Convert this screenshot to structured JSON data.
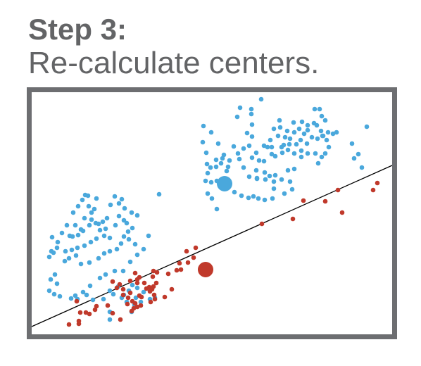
{
  "header": {
    "step": "Step 3:",
    "subtitle": "Re-calculate centers."
  },
  "colors": {
    "text": "#636466",
    "frame": "#6d6e71",
    "blue": "#4aa8dc",
    "red": "#c0392b",
    "line": "#000000"
  },
  "chart_data": {
    "type": "scatter",
    "title": "",
    "xlim": [
      0,
      512
    ],
    "ylim": [
      0,
      344
    ],
    "separator": {
      "x1": 0,
      "y1": 11,
      "x2": 512,
      "y2": 240
    },
    "series": [
      {
        "cluster": "blue",
        "points": [
          [
            326,
            334
          ],
          [
            312,
            320
          ],
          [
            296,
            322
          ],
          [
            312,
            313
          ],
          [
            292,
            309
          ],
          [
            313,
            298
          ],
          [
            306,
            286
          ],
          [
            313,
            281
          ],
          [
            402,
            320
          ],
          [
            409,
            320
          ],
          [
            412,
            310
          ],
          [
            417,
            304
          ],
          [
            476,
            295
          ],
          [
            384,
            302
          ],
          [
            401,
            300
          ],
          [
            405,
            297
          ],
          [
            392,
            297
          ],
          [
            372,
            301
          ],
          [
            380,
            292
          ],
          [
            363,
            289
          ],
          [
            373,
            287
          ],
          [
            387,
            285
          ],
          [
            344,
            292
          ],
          [
            350,
            282
          ],
          [
            339,
            276
          ],
          [
            330,
            268
          ],
          [
            355,
            266
          ],
          [
            366,
            270
          ],
          [
            341,
            256
          ],
          [
            346,
            253
          ],
          [
            356,
            258
          ],
          [
            364,
            262
          ],
          [
            373,
            257
          ],
          [
            383,
            252
          ],
          [
            392,
            257
          ],
          [
            403,
            257
          ],
          [
            412,
            252
          ],
          [
            417,
            257
          ],
          [
            407,
            243
          ],
          [
            422,
            266
          ],
          [
            419,
            276
          ],
          [
            413,
            282
          ],
          [
            406,
            278
          ],
          [
            398,
            280
          ],
          [
            391,
            271
          ],
          [
            382,
            276
          ],
          [
            376,
            270
          ],
          [
            367,
            278
          ],
          [
            358,
            269
          ],
          [
            360,
            280
          ],
          [
            353,
            294
          ],
          [
            352,
            304
          ],
          [
            428,
            285
          ],
          [
            421,
            287
          ],
          [
            433,
            287
          ],
          [
            411,
            289
          ],
          [
            414,
            282
          ],
          [
            392,
            290
          ],
          [
            383,
            261
          ],
          [
            341,
            266
          ],
          [
            335,
            266
          ],
          [
            455,
            271
          ],
          [
            458,
            250
          ],
          [
            464,
            256
          ],
          [
            469,
            237
          ],
          [
            287,
            267
          ],
          [
            293,
            257
          ],
          [
            301,
            264
          ],
          [
            309,
            268
          ],
          [
            255,
            287
          ],
          [
            244,
            296
          ],
          [
            243,
            273
          ],
          [
            265,
            271
          ],
          [
            273,
            255
          ],
          [
            262,
            248
          ],
          [
            248,
            258
          ],
          [
            249,
            242
          ],
          [
            247,
            218
          ],
          [
            250,
            229
          ],
          [
            254,
            237
          ],
          [
            262,
            238
          ],
          [
            277,
            232
          ],
          [
            319,
            233
          ],
          [
            313,
            251
          ],
          [
            319,
            258
          ],
          [
            323,
            247
          ],
          [
            330,
            246
          ],
          [
            331,
            230
          ],
          [
            332,
            220
          ],
          [
            320,
            221
          ],
          [
            309,
            224
          ],
          [
            301,
            237
          ],
          [
            295,
            249
          ],
          [
            281,
            247
          ],
          [
            271,
            250
          ],
          [
            279,
            238
          ],
          [
            269,
            243
          ],
          [
            263,
            218
          ],
          [
            255,
            216
          ],
          [
            250,
            200
          ],
          [
            256,
            193
          ],
          [
            263,
            178
          ],
          [
            320,
            222
          ],
          [
            338,
            225
          ],
          [
            346,
            226
          ],
          [
            355,
            220
          ],
          [
            344,
            207
          ],
          [
            344,
            217
          ],
          [
            373,
            235
          ],
          [
            364,
            233
          ],
          [
            367,
            217
          ],
          [
            370,
            206
          ],
          [
            359,
            200
          ],
          [
            342,
            193
          ],
          [
            331,
            191
          ],
          [
            322,
            193
          ],
          [
            315,
            196
          ],
          [
            308,
            194
          ],
          [
            298,
            197
          ],
          [
            288,
            202
          ],
          [
            72,
            191
          ],
          [
            76,
            198
          ],
          [
            80,
            197
          ],
          [
            92,
            193
          ],
          [
            118,
            196
          ],
          [
            128,
            192
          ],
          [
            181,
            199
          ],
          [
            112,
            184
          ],
          [
            124,
            186
          ],
          [
            132,
            179
          ],
          [
            142,
            173
          ],
          [
            150,
            169
          ],
          [
            124,
            168
          ],
          [
            107,
            165
          ],
          [
            95,
            157
          ],
          [
            101,
            160
          ],
          [
            85,
            173
          ],
          [
            89,
            178
          ],
          [
            81,
            182
          ],
          [
            66,
            182
          ],
          [
            59,
            173
          ],
          [
            75,
            165
          ],
          [
            82,
            155
          ],
          [
            73,
            147
          ],
          [
            66,
            141
          ],
          [
            58,
            139
          ],
          [
            29,
            138
          ],
          [
            28,
            118
          ],
          [
            31,
            116
          ],
          [
            48,
            118
          ],
          [
            57,
            120
          ],
          [
            65,
            123
          ],
          [
            75,
            126
          ],
          [
            84,
            131
          ],
          [
            92,
            136
          ],
          [
            103,
            140
          ],
          [
            111,
            137
          ],
          [
            131,
            139
          ],
          [
            137,
            146
          ],
          [
            143,
            151
          ],
          [
            135,
            158
          ],
          [
            131,
            162
          ],
          [
            119,
            155
          ],
          [
            105,
            150
          ],
          [
            97,
            148
          ],
          [
            91,
            158
          ],
          [
            85,
            163
          ],
          [
            70,
            149
          ],
          [
            62,
            155
          ],
          [
            50,
            155
          ],
          [
            54,
            140
          ],
          [
            43,
            144
          ],
          [
            37,
            131
          ],
          [
            36,
            123
          ],
          [
            25,
            110
          ],
          [
            47,
            104
          ],
          [
            53,
            108
          ],
          [
            63,
            112
          ],
          [
            70,
            100
          ],
          [
            82,
            102
          ],
          [
            95,
            108
          ],
          [
            103,
            115
          ],
          [
            111,
            118
          ],
          [
            121,
            121
          ],
          [
            127,
            129
          ],
          [
            138,
            135
          ],
          [
            147,
            128
          ],
          [
            166,
            140
          ],
          [
            159,
            121
          ],
          [
            150,
            113
          ],
          [
            140,
            103
          ],
          [
            130,
            90
          ],
          [
            118,
            90
          ],
          [
            105,
            85
          ],
          [
            97,
            80
          ],
          [
            83,
            69
          ],
          [
            33,
            85
          ],
          [
            27,
            78
          ],
          [
            36,
            72
          ],
          [
            25,
            62
          ],
          [
            32,
            57
          ],
          [
            40,
            54
          ],
          [
            56,
            51
          ],
          [
            65,
            50
          ],
          [
            62,
            55
          ],
          [
            73,
            60
          ],
          [
            78,
            56
          ],
          [
            87,
            49
          ],
          [
            102,
            50
          ],
          [
            116,
            57
          ],
          [
            111,
            62
          ],
          [
            123,
            68
          ],
          [
            143,
            70
          ],
          [
            150,
            66
          ],
          [
            138,
            62
          ],
          [
            131,
            56
          ],
          [
            128,
            52
          ],
          [
            148,
            52
          ],
          [
            175,
            52
          ],
          [
            155,
            46
          ],
          [
            135,
            46
          ],
          [
            168,
            50
          ],
          [
            159,
            60
          ],
          [
            146,
            42
          ],
          [
            142,
            32
          ],
          [
            111,
            32
          ],
          [
            111,
            21
          ]
        ]
      },
      {
        "cluster": "red",
        "points": [
          [
            491,
            215
          ],
          [
            485,
            205
          ],
          [
            435,
            205
          ],
          [
            441,
            173
          ],
          [
            386,
            190
          ],
          [
            327,
            157
          ],
          [
            371,
            164
          ],
          [
            417,
            189
          ],
          [
            233,
            123
          ],
          [
            220,
            118
          ],
          [
            222,
            102
          ],
          [
            230,
            109
          ],
          [
            210,
            101
          ],
          [
            212,
            92
          ],
          [
            194,
            86
          ],
          [
            206,
            91
          ],
          [
            199,
            64
          ],
          [
            189,
            53
          ],
          [
            168,
            61
          ],
          [
            173,
            68
          ],
          [
            163,
            65
          ],
          [
            160,
            73
          ],
          [
            153,
            81
          ],
          [
            147,
            87
          ],
          [
            150,
            73
          ],
          [
            150,
            78
          ],
          [
            140,
            76
          ],
          [
            140,
            59
          ],
          [
            130,
            64
          ],
          [
            121,
            66
          ],
          [
            125,
            71
          ],
          [
            115,
            75
          ],
          [
            130,
            56
          ],
          [
            137,
            52
          ],
          [
            136,
            43
          ],
          [
            143,
            47
          ],
          [
            147,
            44
          ],
          [
            142,
            33
          ],
          [
            150,
            39
          ],
          [
            156,
            53
          ],
          [
            153,
            55
          ],
          [
            167,
            67
          ],
          [
            177,
            73
          ],
          [
            178,
            88
          ],
          [
            173,
            90
          ],
          [
            172,
            82
          ],
          [
            171,
            64
          ],
          [
            174,
            56
          ],
          [
            175,
            50
          ],
          [
            169,
            46
          ],
          [
            155,
            41
          ],
          [
            145,
            37
          ],
          [
            126,
            21
          ],
          [
            115,
            30
          ],
          [
            108,
            41
          ],
          [
            90,
            35
          ],
          [
            82,
            29
          ],
          [
            77,
            31
          ],
          [
            69,
            31
          ],
          [
            67,
            19
          ],
          [
            67,
            15
          ],
          [
            53,
            14
          ],
          [
            92,
            40
          ],
          [
            64,
            47
          ]
        ]
      }
    ],
    "centers": [
      {
        "cluster": "blue",
        "x": 274,
        "y": 214
      },
      {
        "cluster": "red",
        "x": 247,
        "y": 92
      }
    ]
  }
}
